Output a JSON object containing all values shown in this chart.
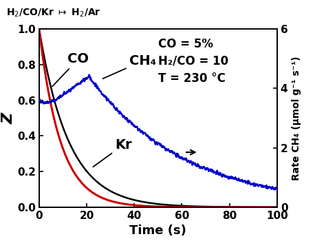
{
  "xlabel": "Time (s)",
  "ylabel_left": "Z",
  "ylabel_right": "Rate CH₄ (μmol g⁻¹ s⁻¹)",
  "xlim": [
    0,
    100
  ],
  "ylim_left": [
    0,
    1.0
  ],
  "ylim_right": [
    0,
    6
  ],
  "annotation_text": "CO = 5%\nH₂/CO = 10\nT = 230 °C",
  "co_label": "CO",
  "ch4_label": "CH₄",
  "kr_label": "Kr",
  "co_color": "#cc0000",
  "ch4_color": "#0000cc",
  "kr_color": "#000000",
  "background_color": "#ffffff",
  "tick_fontsize": 11,
  "label_fontsize": 13,
  "annot_fontsize": 12,
  "header_left": "H₂/CO/Kr",
  "header_arrow": "⊢",
  "header_right": "H₂/Ar",
  "xticks": [
    0,
    20,
    40,
    60,
    80,
    100
  ],
  "yticks_left": [
    0.0,
    0.2,
    0.4,
    0.6,
    0.8,
    1.0
  ],
  "yticks_right": [
    0,
    2,
    4,
    6
  ]
}
